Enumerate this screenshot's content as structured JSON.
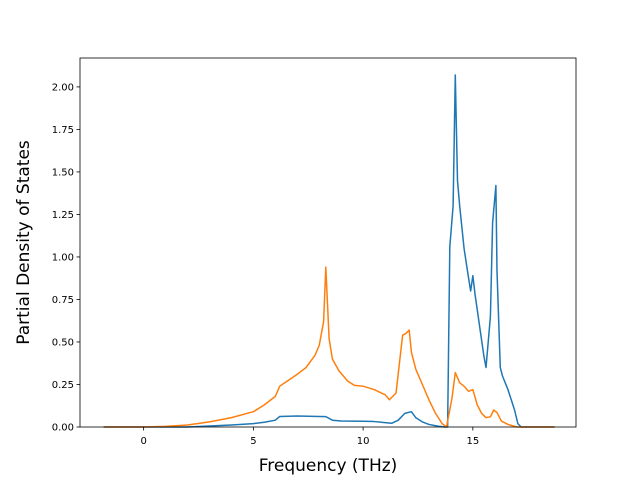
{
  "chart_data": {
    "type": "line",
    "title": "",
    "xlabel": "Frequency (THz)",
    "ylabel": "Partial Density of States",
    "xlim": [
      -2.9,
      19.7
    ],
    "ylim": [
      0.0,
      2.17
    ],
    "x_ticks": [
      0,
      5,
      10,
      15
    ],
    "x_tick_labels": [
      "0",
      "5",
      "10",
      "15"
    ],
    "y_ticks": [
      0.0,
      0.25,
      0.5,
      0.75,
      1.0,
      1.25,
      1.5,
      1.75,
      2.0
    ],
    "y_tick_labels": [
      "0.00",
      "0.25",
      "0.50",
      "0.75",
      "1.00",
      "1.25",
      "1.50",
      "1.75",
      "2.00"
    ],
    "grid": false,
    "series": [
      {
        "color": "#1f77b4",
        "x": [
          -1.8,
          0.0,
          2.0,
          4.0,
          5.0,
          5.5,
          6.0,
          6.2,
          7.0,
          8.0,
          8.3,
          8.6,
          9.0,
          10.0,
          10.5,
          11.0,
          11.3,
          11.6,
          11.9,
          12.2,
          12.4,
          12.7,
          13.0,
          13.4,
          13.7,
          13.85,
          13.95,
          14.1,
          14.2,
          14.3,
          14.4,
          14.6,
          14.8,
          14.9,
          15.0,
          15.1,
          15.3,
          15.5,
          15.6,
          15.8,
          15.9,
          16.05,
          16.1,
          16.25,
          16.35,
          16.6,
          16.9,
          17.05,
          17.2,
          17.5,
          18.0,
          18.7
        ],
        "y": [
          0.0,
          0.0,
          0.0,
          0.012,
          0.02,
          0.028,
          0.04,
          0.062,
          0.065,
          0.062,
          0.061,
          0.04,
          0.035,
          0.034,
          0.032,
          0.026,
          0.022,
          0.04,
          0.08,
          0.09,
          0.055,
          0.03,
          0.015,
          0.005,
          0.0,
          0.0,
          1.06,
          1.3,
          2.07,
          1.45,
          1.3,
          1.05,
          0.88,
          0.8,
          0.89,
          0.78,
          0.6,
          0.42,
          0.35,
          0.65,
          1.2,
          1.42,
          0.92,
          0.35,
          0.3,
          0.22,
          0.1,
          0.02,
          0.0,
          0.0,
          0.0,
          0.0
        ]
      },
      {
        "color": "#ff7f0e",
        "x": [
          -1.8,
          0.0,
          1.0,
          2.0,
          3.0,
          4.0,
          5.0,
          5.5,
          6.0,
          6.2,
          6.6,
          7.0,
          7.4,
          7.8,
          8.0,
          8.2,
          8.3,
          8.45,
          8.6,
          8.9,
          9.3,
          9.6,
          10.0,
          10.5,
          11.0,
          11.2,
          11.5,
          11.8,
          11.95,
          12.1,
          12.2,
          12.4,
          12.7,
          13.0,
          13.3,
          13.6,
          13.8,
          14.05,
          14.2,
          14.4,
          14.6,
          14.8,
          15.0,
          15.2,
          15.4,
          15.6,
          15.8,
          15.95,
          16.1,
          16.3,
          16.6,
          17.0,
          17.5,
          18.0,
          18.7
        ],
        "y": [
          0.0,
          0.0,
          0.004,
          0.012,
          0.03,
          0.055,
          0.09,
          0.13,
          0.18,
          0.24,
          0.275,
          0.31,
          0.35,
          0.42,
          0.48,
          0.62,
          0.94,
          0.52,
          0.4,
          0.33,
          0.27,
          0.245,
          0.24,
          0.22,
          0.19,
          0.16,
          0.2,
          0.54,
          0.55,
          0.57,
          0.44,
          0.34,
          0.25,
          0.16,
          0.08,
          0.02,
          0.0,
          0.17,
          0.32,
          0.26,
          0.24,
          0.21,
          0.22,
          0.13,
          0.08,
          0.055,
          0.06,
          0.1,
          0.085,
          0.035,
          0.015,
          0.0,
          0.0,
          0.0,
          0.0
        ]
      }
    ]
  }
}
